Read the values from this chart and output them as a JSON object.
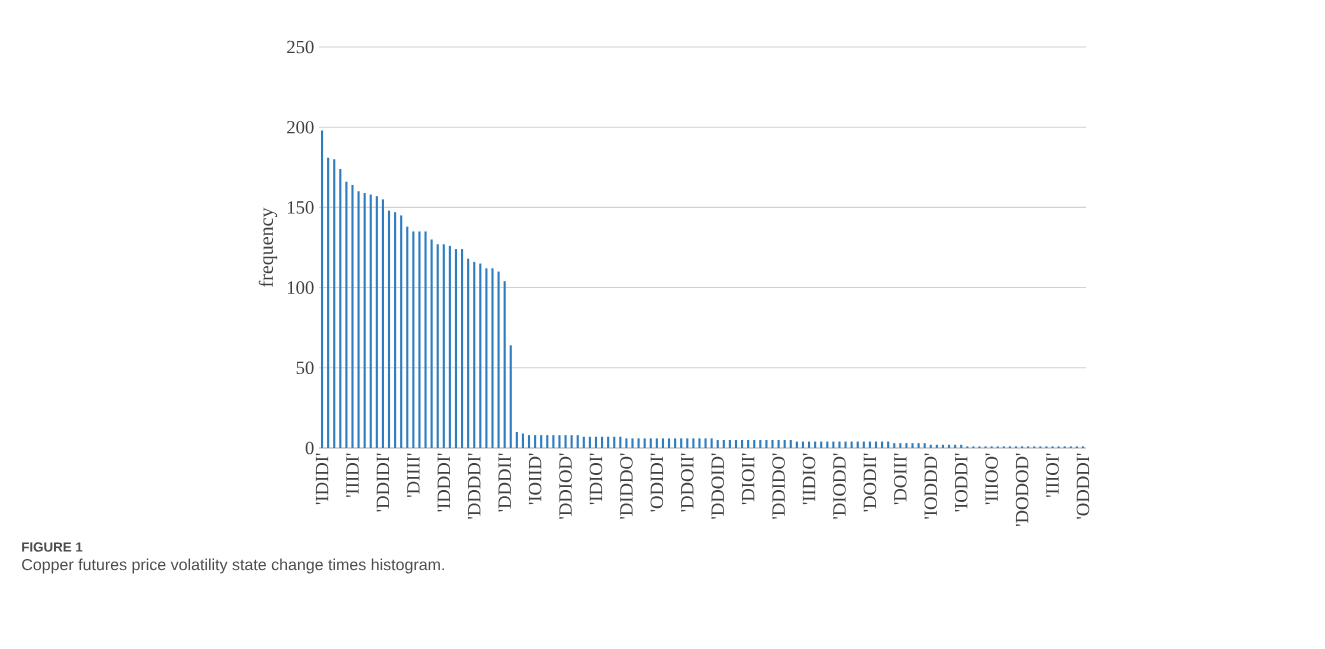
{
  "chart_data": {
    "type": "bar",
    "categories": [
      "'IDIDI'",
      null,
      null,
      null,
      null,
      "'IIIDI'",
      null,
      null,
      null,
      null,
      "'DDIDI'",
      null,
      null,
      null,
      null,
      "'DIIII'",
      null,
      null,
      null,
      null,
      "'IDDDI'",
      null,
      null,
      null,
      null,
      "'DDDDI'",
      null,
      null,
      null,
      null,
      "'DDDII'",
      null,
      null,
      null,
      null,
      "'IOIID'",
      null,
      null,
      null,
      null,
      "'DDIOD'",
      null,
      null,
      null,
      null,
      "'IDIOI'",
      null,
      null,
      null,
      null,
      "'DIDDO'",
      null,
      null,
      null,
      null,
      "'ODIDI'",
      null,
      null,
      null,
      null,
      "'DDOII'",
      null,
      null,
      null,
      null,
      "'DDOID'",
      null,
      null,
      null,
      null,
      "'DIOII'",
      null,
      null,
      null,
      null,
      "'DDIDO'",
      null,
      null,
      null,
      null,
      "'IIDIO'",
      null,
      null,
      null,
      null,
      "'DIODD'",
      null,
      null,
      null,
      null,
      "'DODII'",
      null,
      null,
      null,
      null,
      "'DOIII'",
      null,
      null,
      null,
      null,
      "'IODDD'",
      null,
      null,
      null,
      null,
      "'IODDI'",
      null,
      null,
      null,
      null,
      "'IIIOO'",
      null,
      null,
      null,
      null,
      "'DODOD'",
      null,
      null,
      null,
      null,
      "'IIIOI'",
      null,
      null,
      null,
      null,
      "'ODDDI'"
    ],
    "values": [
      198,
      181,
      180,
      174,
      166,
      164,
      160,
      159,
      158,
      157,
      155,
      148,
      147,
      145,
      138,
      135,
      135,
      135,
      130,
      127,
      127,
      126,
      124,
      124,
      118,
      116,
      115,
      112,
      112,
      110,
      104,
      64,
      10,
      9,
      8,
      8,
      8,
      8,
      8,
      8,
      8,
      8,
      8,
      7,
      7,
      7,
      7,
      7,
      7,
      7,
      6,
      6,
      6,
      6,
      6,
      6,
      6,
      6,
      6,
      6,
      6,
      6,
      6,
      6,
      6,
      5,
      5,
      5,
      5,
      5,
      5,
      5,
      5,
      5,
      5,
      5,
      5,
      5,
      4,
      4,
      4,
      4,
      4,
      4,
      4,
      4,
      4,
      4,
      4,
      4,
      4,
      4,
      4,
      4,
      3,
      3,
      3,
      3,
      3,
      3,
      2,
      2,
      2,
      2,
      2,
      2,
      1,
      1,
      1,
      1,
      1,
      1,
      1,
      1,
      1,
      1,
      1,
      1,
      1,
      1,
      1,
      1,
      1,
      1,
      1,
      1
    ],
    "color": "#2e7dc0",
    "ylabel": "frequency",
    "ylim": [
      0,
      250
    ],
    "yticks": [
      0,
      50,
      100,
      150,
      200,
      250
    ],
    "grid": "y",
    "annotations": [
      "FIGURE 1",
      "Copper futures price volatility state change times histogram."
    ]
  }
}
